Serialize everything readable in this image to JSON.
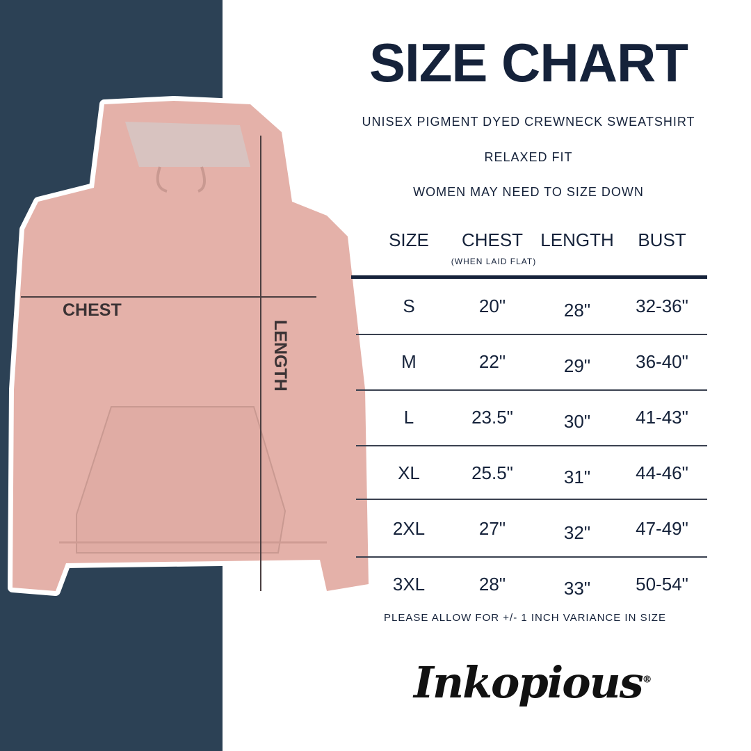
{
  "title": "SIZE CHART",
  "subtitles": [
    "UNISEX PIGMENT DYED CREWNECK SWEATSHIRT",
    "RELAXED FIT",
    "WOMEN MAY NEED TO SIZE DOWN"
  ],
  "image_labels": {
    "chest": "CHEST",
    "length": "LENGTH"
  },
  "chart_data": {
    "type": "table",
    "columns": [
      "SIZE",
      "CHEST",
      "LENGTH",
      "BUST"
    ],
    "column_note": "(WHEN LAID FLAT)",
    "rows": [
      [
        "S",
        "20\"",
        "28\"",
        "32-36\""
      ],
      [
        "M",
        "22\"",
        "29\"",
        "36-40\""
      ],
      [
        "L",
        "23.5\"",
        "30\"",
        "41-43\""
      ],
      [
        "XL",
        "25.5\"",
        "31\"",
        "44-46\""
      ],
      [
        "2XL",
        "27\"",
        "32\"",
        "47-49\""
      ],
      [
        "3XL",
        "28\"",
        "33\"",
        "50-54\""
      ]
    ]
  },
  "footnote": "PLEASE ALLOW FOR +/- 1 INCH VARIANCE IN SIZE",
  "brand": "Inkopious",
  "colors": {
    "navy_panel": "#2c4155",
    "text": "#15223a",
    "hoodie": "#e8b5ad"
  }
}
